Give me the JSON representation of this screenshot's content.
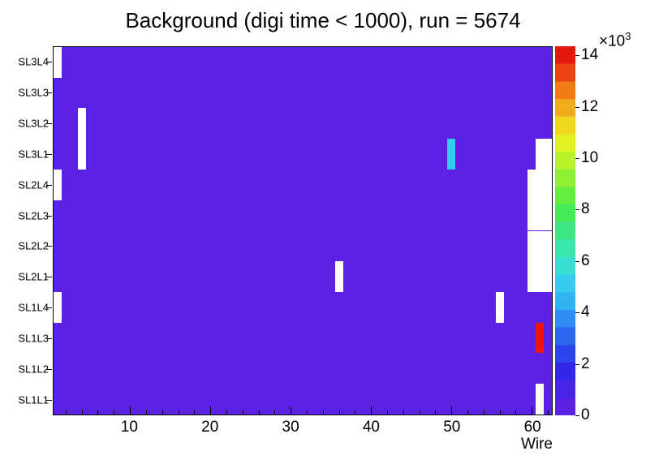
{
  "title": "Background (digi time < 1000), run = 5674",
  "axes": {
    "x_label": "Wire",
    "x_ticks": [
      10,
      20,
      30,
      40,
      50,
      60
    ],
    "x_bins": 62,
    "y_rows": [
      "SL3L4",
      "SL3L3",
      "SL3L2",
      "SL3L1",
      "SL2L4",
      "SL2L3",
      "SL2L2",
      "SL2L1",
      "SL1L4",
      "SL1L3",
      "SL1L2",
      "SL1L1"
    ]
  },
  "colorbar": {
    "scale_base": "×10",
    "scale_exp": "3",
    "ticks": [
      0,
      2,
      4,
      6,
      8,
      10,
      12,
      14
    ],
    "max_value": 14350,
    "palette_bottom_to_top": [
      "#5b21e5",
      "#4724e8",
      "#3328ea",
      "#2b44ee",
      "#2b66f0",
      "#2e8cf2",
      "#32b4f2",
      "#35cdee",
      "#37dfd2",
      "#39e6ad",
      "#3be883",
      "#44ea58",
      "#65ee3e",
      "#8ff032",
      "#baf22a",
      "#e0f022",
      "#f0d81e",
      "#f2ac1a",
      "#f27c16",
      "#ee4412",
      "#e5180e"
    ]
  },
  "colors": {
    "background_bin": "#5b21e5",
    "empty_bin": "#ffffff",
    "frame": "#000000"
  },
  "chart_data": {
    "type": "heatmap",
    "title": "Background (digi time < 1000), run = 5674",
    "xlabel": "Wire",
    "x_range": [
      1,
      62
    ],
    "y_categories_top_to_bottom": [
      "SL3L4",
      "SL3L3",
      "SL3L2",
      "SL3L1",
      "SL2L4",
      "SL2L3",
      "SL2L2",
      "SL2L1",
      "SL1L4",
      "SL1L3",
      "SL1L2",
      "SL1L1"
    ],
    "color_scale": {
      "label": "×10³",
      "range_thousands": [
        0,
        14.35
      ],
      "ticks_thousands": [
        0,
        2,
        4,
        6,
        8,
        10,
        12,
        14
      ]
    },
    "base_fill": {
      "color": "#5b21e5",
      "value_approx_thousands": 0.5,
      "note": "uniform low background over nearly all wires and layers"
    },
    "cells": [
      {
        "layer": "SL3L4",
        "wire": 1,
        "kind": "empty"
      },
      {
        "layer": "SL3L2",
        "wire": 4,
        "kind": "empty"
      },
      {
        "layer": "SL3L1",
        "wire": 4,
        "kind": "empty"
      },
      {
        "layer": "SL2L4",
        "wire": 1,
        "kind": "empty"
      },
      {
        "layer": "SL1L4",
        "wire": 1,
        "kind": "empty"
      },
      {
        "layer": "SL2L1",
        "wire": 36,
        "kind": "empty"
      },
      {
        "layer": "SL3L1",
        "wire": 50,
        "kind": "value",
        "value_approx_thousands": 4.5,
        "color": "#35cdee"
      },
      {
        "layer": "SL3L1",
        "wire": 61,
        "wire_end": 62,
        "kind": "empty"
      },
      {
        "layer": "SL2L4",
        "wire": 60,
        "wire_end": 62,
        "kind": "empty"
      },
      {
        "layer": "SL2L3",
        "wire": 60,
        "wire_end": 62,
        "kind": "empty"
      },
      {
        "layer": "SL2L2",
        "wire": 60,
        "wire_end": 62,
        "kind": "empty"
      },
      {
        "layer": "SL2L1",
        "wire": 60,
        "wire_end": 62,
        "kind": "empty"
      },
      {
        "layer": "SL1L4",
        "wire": 56,
        "kind": "empty"
      },
      {
        "layer": "SL1L3",
        "wire": 61,
        "kind": "value",
        "value_approx_thousands": 14,
        "color": "#e8180f"
      },
      {
        "layer": "SL1L1",
        "wire": 61,
        "kind": "empty"
      }
    ]
  }
}
